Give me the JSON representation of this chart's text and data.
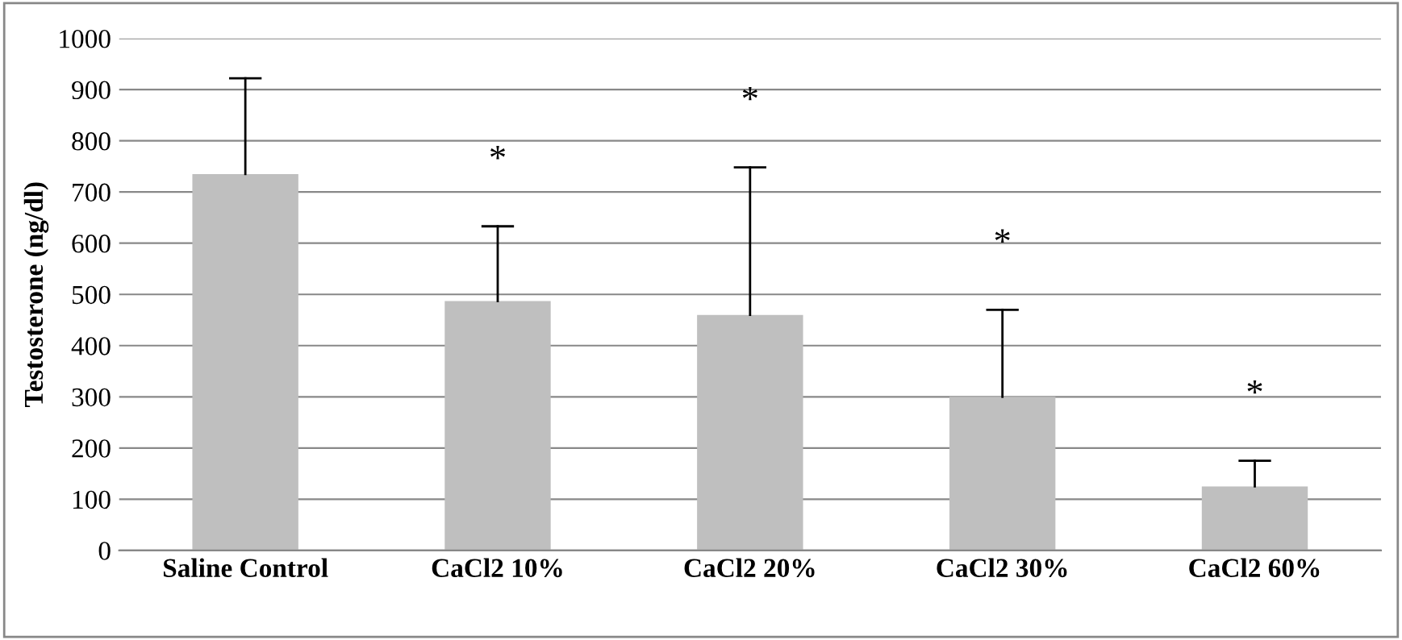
{
  "chart_data": {
    "type": "bar",
    "ylabel": "Testosterone (ng/dl)",
    "categories": [
      "Saline Control",
      "CaCl2 10%",
      "CaCl2 20%",
      "CaCl2 30%",
      "CaCl2 60%"
    ],
    "values": [
      735,
      487,
      460,
      300,
      125
    ],
    "errors": [
      [
        735,
        922
      ],
      [
        487,
        633
      ],
      [
        460,
        748
      ],
      [
        300,
        470
      ],
      [
        125,
        175
      ]
    ],
    "color": "#bfbfbf",
    "ylim": [
      0,
      1000
    ],
    "yticks": [
      0,
      100,
      200,
      300,
      400,
      500,
      600,
      700,
      800,
      900,
      1000
    ],
    "grid": "y",
    "annotations": [
      "*",
      "*",
      "*",
      "*"
    ]
  }
}
